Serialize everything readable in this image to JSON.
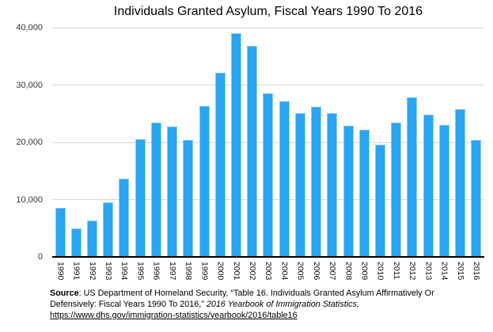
{
  "title": "Individuals Granted Asylum, Fiscal Years 1990 To 2016",
  "chart_data": {
    "type": "bar",
    "title": "Individuals Granted Asylum, Fiscal Years 1990 To 2016",
    "categories": [
      "1990",
      "1991",
      "1992",
      "1993",
      "1994",
      "1995",
      "1996",
      "1997",
      "1998",
      "1999",
      "2000",
      "2001",
      "2002",
      "2003",
      "2004",
      "2005",
      "2006",
      "2007",
      "2008",
      "2009",
      "2010",
      "2011",
      "2012",
      "2013",
      "2014",
      "2015",
      "2016"
    ],
    "values": [
      8500,
      5000,
      6300,
      9500,
      13700,
      20600,
      23400,
      22700,
      20400,
      26400,
      32200,
      39000,
      36800,
      28500,
      27200,
      25100,
      26200,
      25100,
      22900,
      22200,
      19600,
      23400,
      27800,
      24800,
      23100,
      25800,
      20400
    ],
    "xlabel": "",
    "ylabel": "",
    "ylim": [
      0,
      40000
    ],
    "y_ticks": [
      0,
      10000,
      20000,
      30000,
      40000
    ],
    "y_tick_labels": [
      "0",
      "10,000",
      "20,000",
      "30,000",
      "40,000"
    ],
    "grid": "horizontal",
    "legend": "none",
    "bar_color": "#2AA5F1",
    "gridline_color": "#d8d8d8",
    "axis_color": "#000000"
  },
  "source": {
    "label": "Source",
    "text": ": US Department of Homeland Security, “Table 16. Individuals Granted Asylum Affirmatively Or Defensively: Fiscal Years 1990 To 2016,” ",
    "italic_text": "2016 Yearbook of Immigration Statistics,",
    "link_text": "https://www.dhs.gov/immigration-statistics/yearbook/2016/table16"
  }
}
